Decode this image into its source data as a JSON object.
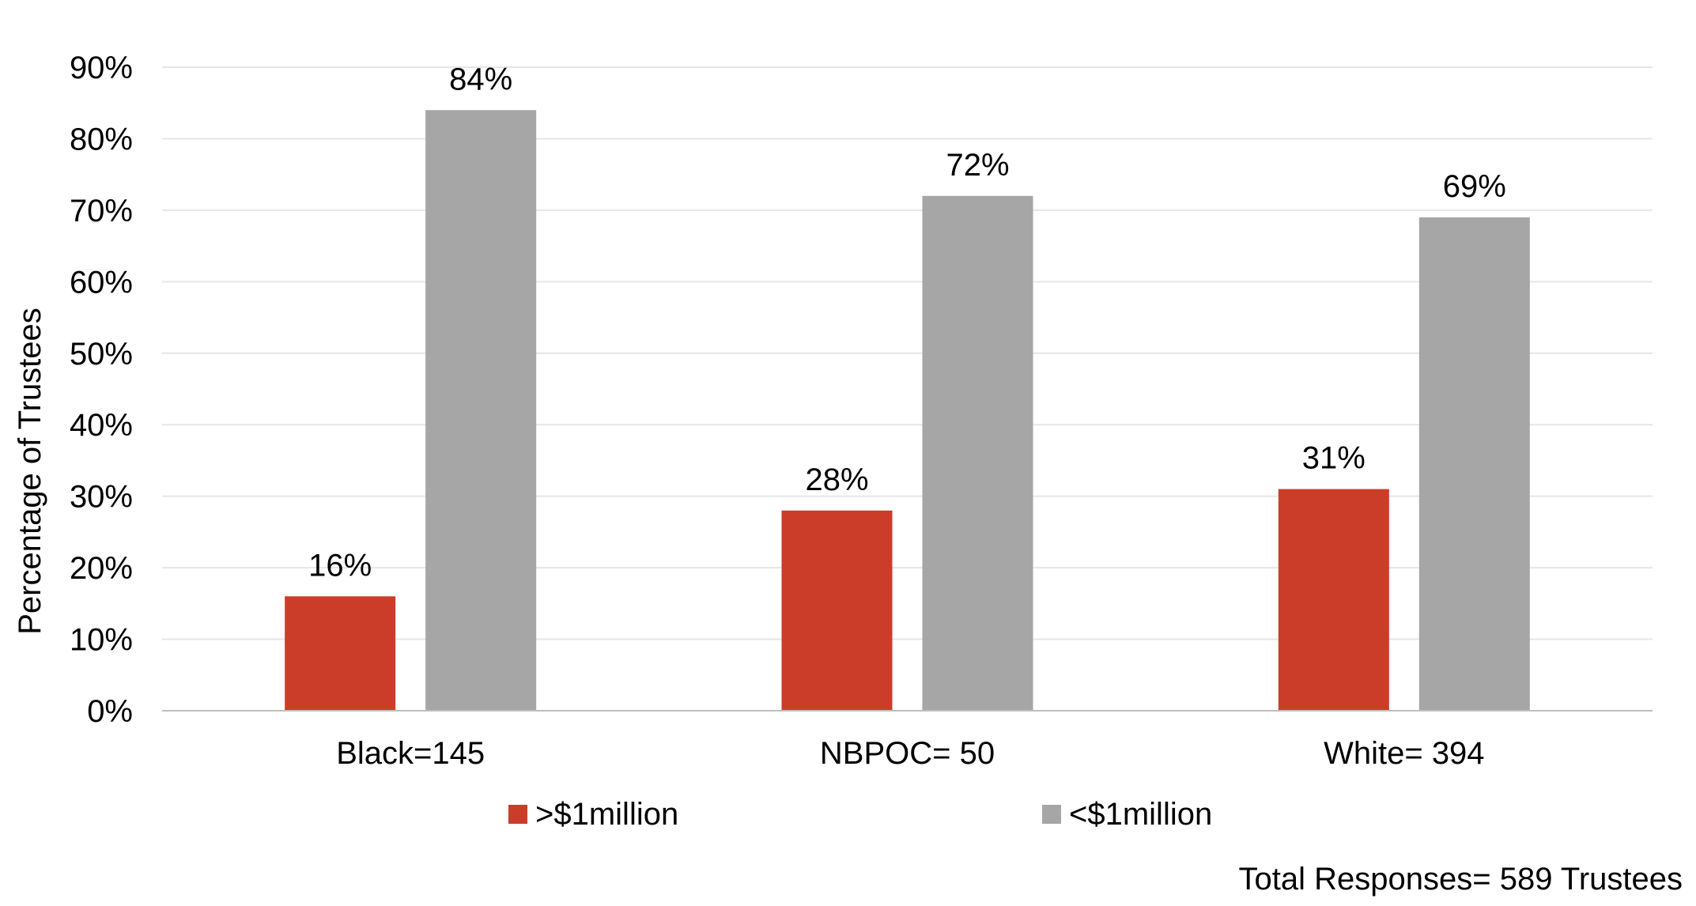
{
  "chart_data": {
    "type": "bar",
    "categories": [
      "Black=145",
      "NBPOC= 50",
      "White= 394"
    ],
    "series": [
      {
        "name": ">$1million",
        "values": [
          16,
          28,
          31
        ],
        "labels": [
          "16%",
          "28%",
          "31%"
        ],
        "color": "#CC3D29"
      },
      {
        "name": "<$1million",
        "values": [
          84,
          72,
          69
        ],
        "labels": [
          "84%",
          "72%",
          "69%"
        ],
        "color": "#A6A6A6"
      }
    ],
    "ylabel": "Percentage of Trustees",
    "xlabel": "",
    "ylim": [
      0,
      90
    ],
    "yticks": [
      0,
      10,
      20,
      30,
      40,
      50,
      60,
      70,
      80,
      90
    ],
    "ytick_labels": [
      "0%",
      "10%",
      "20%",
      "30%",
      "40%",
      "50%",
      "60%",
      "70%",
      "80%",
      "90%"
    ],
    "grid": true,
    "legend_position": "bottom",
    "note": "Total Responses= 589 Trustees"
  }
}
